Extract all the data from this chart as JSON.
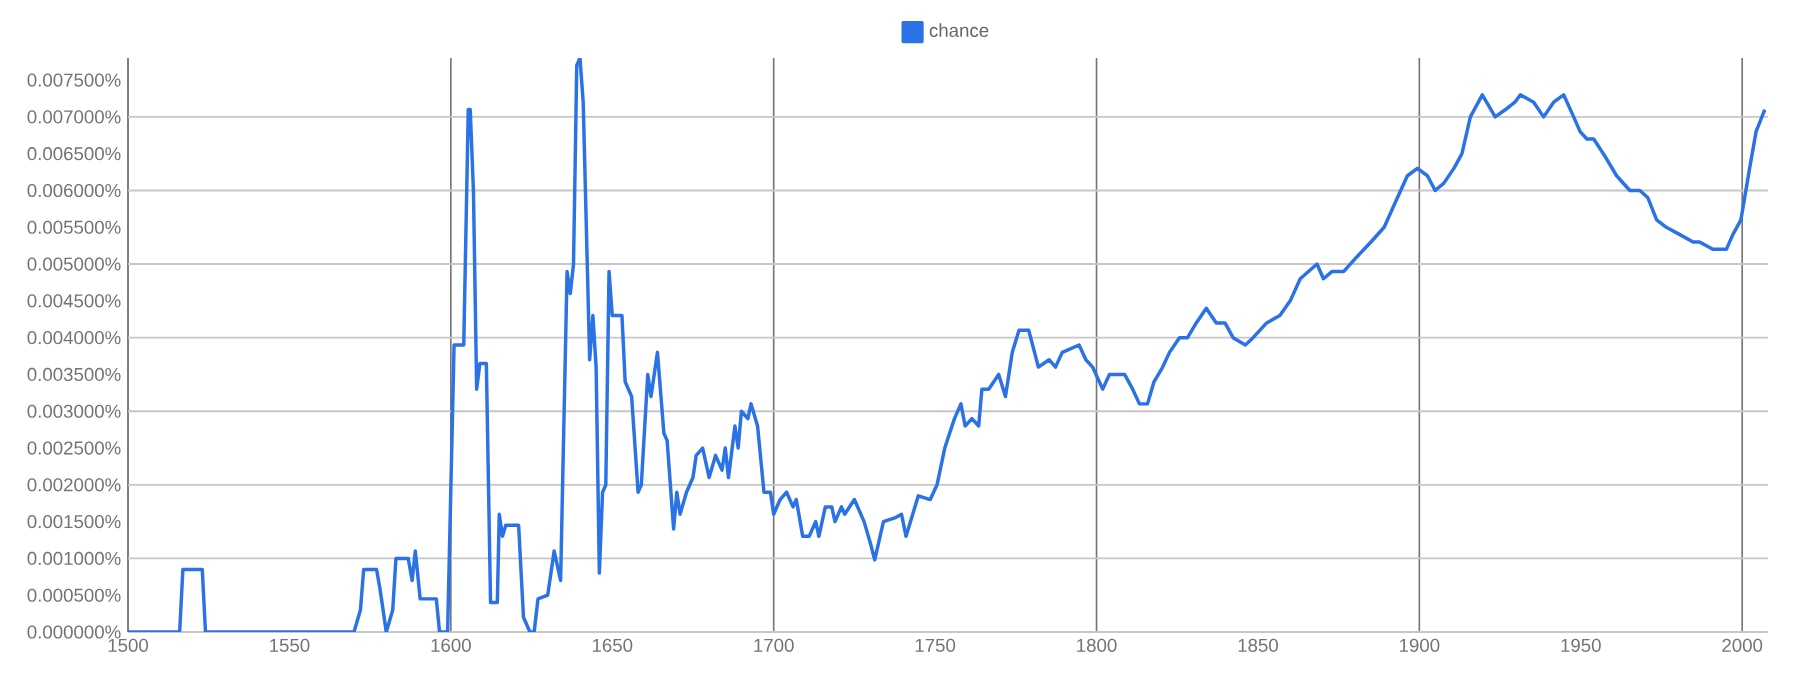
{
  "chart_data": {
    "type": "line",
    "legend": "top",
    "grid": true,
    "line_style": "solid",
    "xlim": [
      1500,
      2008
    ],
    "ylim": [
      0,
      0.0078
    ],
    "xticks": [
      1500,
      1550,
      1600,
      1650,
      1700,
      1750,
      1800,
      1850,
      1900,
      1950,
      2000
    ],
    "yticks": [
      {
        "value": 0,
        "label": "0.000000%"
      },
      {
        "value": 0.0005,
        "label": "0.000500%"
      },
      {
        "value": 0.001,
        "label": "0.001000%"
      },
      {
        "value": 0.0015,
        "label": "0.001500%"
      },
      {
        "value": 0.002,
        "label": "0.002000%"
      },
      {
        "value": 0.0025,
        "label": "0.002500%"
      },
      {
        "value": 0.003,
        "label": "0.003000%"
      },
      {
        "value": 0.0035,
        "label": "0.003500%"
      },
      {
        "value": 0.004,
        "label": "0.004000%"
      },
      {
        "value": 0.0045,
        "label": "0.004500%"
      },
      {
        "value": 0.005,
        "label": "0.005000%"
      },
      {
        "value": 0.0055,
        "label": "0.005500%"
      },
      {
        "value": 0.006,
        "label": "0.006000%"
      },
      {
        "value": 0.0065,
        "label": "0.006500%"
      },
      {
        "value": 0.007,
        "label": "0.007000%"
      },
      {
        "value": 0.0075,
        "label": "0.007500%"
      }
    ],
    "series": [
      {
        "name": "chance",
        "color": "#2a72e6",
        "x": [
          1500,
          1516,
          1517,
          1523,
          1524,
          1570,
          1572,
          1573,
          1577,
          1578,
          1580,
          1582,
          1583,
          1586.8,
          1588,
          1589,
          1590.5,
          1595.5,
          1596.5,
          1599,
          1601,
          1604,
          1605.4,
          1606,
          1607,
          1608,
          1609,
          1611,
          1612.3,
          1614.4,
          1615,
          1616,
          1617,
          1621,
          1622.5,
          1624.5,
          1625.8,
          1627,
          1630,
          1632,
          1634,
          1636,
          1637,
          1638,
          1639,
          1640,
          1641,
          1643,
          1644,
          1645,
          1646,
          1647,
          1648,
          1649,
          1650,
          1651,
          1653,
          1654,
          1656,
          1658,
          1659,
          1661,
          1662,
          1664,
          1666,
          1667,
          1669,
          1670,
          1671,
          1673,
          1675,
          1676,
          1678,
          1680,
          1682,
          1684,
          1685,
          1686,
          1688,
          1689,
          1690,
          1692,
          1693,
          1695,
          1697,
          1699,
          1700,
          1702,
          1704,
          1706,
          1707,
          1709,
          1711,
          1713,
          1714,
          1716,
          1718,
          1719,
          1721,
          1722,
          1725,
          1728,
          1730,
          1731.3,
          1734,
          1737.5,
          1739.6,
          1741,
          1744.8,
          1748.5,
          1750.6,
          1753,
          1756,
          1758,
          1759.3,
          1761.4,
          1763.5,
          1764.5,
          1766.6,
          1769.7,
          1771.8,
          1773.9,
          1776,
          1779,
          1782,
          1785.3,
          1787.3,
          1789.4,
          1794.6,
          1796.7,
          1798.8,
          1801.9,
          1804,
          1808.7,
          1811.2,
          1813.3,
          1815.8,
          1817.8,
          1820.5,
          1822.6,
          1825.7,
          1828.2,
          1830.9,
          1834,
          1837.1,
          1839.8,
          1842.3,
          1846.1,
          1848.5,
          1852.7,
          1856.8,
          1860,
          1863.1,
          1868.3,
          1870.3,
          1873,
          1876.6,
          1880.7,
          1885,
          1889.1,
          1893.2,
          1896.3,
          1899.4,
          1902.5,
          1904.9,
          1907.6,
          1910.7,
          1913.2,
          1915.8,
          1919.5,
          1923.5,
          1926.7,
          1929.6,
          1931.3,
          1935.4,
          1938.5,
          1941.6,
          1944.7,
          1947.8,
          1949.8,
          1951.9,
          1954,
          1957,
          1961.1,
          1965.2,
          1968.3,
          1970.8,
          1973.5,
          1976.5,
          1980.7,
          1984.8,
          1986.8,
          1990.9,
          1995.1,
          1997.1,
          1999.6,
          2002.3,
          2004.3,
          2007
        ],
        "values": [
          0,
          0,
          0.00085,
          0.00085,
          0,
          0,
          0.0003,
          0.00085,
          0.00085,
          0.0006,
          0,
          0.0003,
          0.001,
          0.001,
          0.0007,
          0.0011,
          0.00045,
          0.00045,
          0,
          0,
          0.0039,
          0.0039,
          0.0071,
          0.0071,
          0.006,
          0.0033,
          0.00365,
          0.00365,
          0.0004,
          0.0004,
          0.0016,
          0.0013,
          0.00145,
          0.00145,
          0.0002,
          0,
          0,
          0.00045,
          0.0005,
          0.0011,
          0.0007,
          0.0049,
          0.0046,
          0.005,
          0.0077,
          0.0078,
          0.0072,
          0.0037,
          0.0043,
          0.0036,
          0.0008,
          0.0019,
          0.002,
          0.0049,
          0.0043,
          0.0043,
          0.0043,
          0.0034,
          0.0032,
          0.0019,
          0.002,
          0.0035,
          0.0032,
          0.0038,
          0.0027,
          0.0026,
          0.0014,
          0.0019,
          0.0016,
          0.0019,
          0.0021,
          0.0024,
          0.0025,
          0.0021,
          0.0024,
          0.0022,
          0.0025,
          0.0021,
          0.0028,
          0.0025,
          0.003,
          0.0029,
          0.0031,
          0.0028,
          0.0019,
          0.0019,
          0.0016,
          0.0018,
          0.0019,
          0.0017,
          0.0018,
          0.0013,
          0.0013,
          0.0015,
          0.0013,
          0.0017,
          0.0017,
          0.0015,
          0.0017,
          0.0016,
          0.0018,
          0.0015,
          0.0012,
          0.00098,
          0.0015,
          0.00155,
          0.0016,
          0.0013,
          0.00185,
          0.0018,
          0.002,
          0.0025,
          0.0029,
          0.0031,
          0.0028,
          0.0029,
          0.0028,
          0.0033,
          0.0033,
          0.0035,
          0.0032,
          0.0038,
          0.0041,
          0.0041,
          0.0036,
          0.0037,
          0.0036,
          0.0038,
          0.0039,
          0.0037,
          0.0036,
          0.0033,
          0.0035,
          0.0035,
          0.0033,
          0.0031,
          0.0031,
          0.0034,
          0.0036,
          0.0038,
          0.004,
          0.004,
          0.0042,
          0.0044,
          0.0042,
          0.0042,
          0.004,
          0.0039,
          0.004,
          0.0042,
          0.0043,
          0.0045,
          0.0048,
          0.005,
          0.0048,
          0.0049,
          0.0049,
          0.0051,
          0.0053,
          0.0055,
          0.0059,
          0.0062,
          0.0063,
          0.0062,
          0.006,
          0.0061,
          0.0063,
          0.0065,
          0.007,
          0.0073,
          0.007,
          0.0071,
          0.0072,
          0.0073,
          0.0072,
          0.007,
          0.0072,
          0.0073,
          0.007,
          0.0068,
          0.0067,
          0.0067,
          0.0065,
          0.0062,
          0.006,
          0.006,
          0.0059,
          0.0056,
          0.0055,
          0.0054,
          0.0053,
          0.0053,
          0.0052,
          0.0052,
          0.0054,
          0.0056,
          0.0063,
          0.0068,
          0.0071
        ]
      }
    ]
  }
}
